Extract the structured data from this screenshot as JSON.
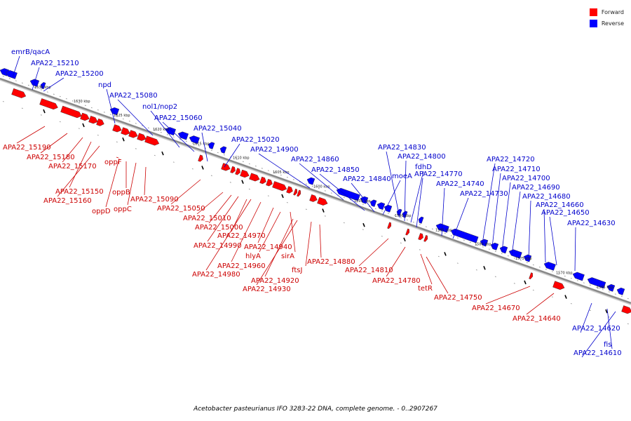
{
  "legend": {
    "forward": "Forward",
    "reverse": "Reverse"
  },
  "colors": {
    "forward": "#ff0000",
    "reverse": "#0000ff",
    "forward_label": "#cc0000",
    "reverse_label": "#0000cc",
    "backbone": "#888888"
  },
  "caption": "Acetobacter pasteurianus IFO 3283-22 DNA, complete genome. - 0..2907267",
  "scale_ticks": [
    "1635 kbp",
    "1630 kbp",
    "1625 kbp",
    "1620 kbp",
    "1615 kbp",
    "1610 kbp",
    "1605 kbp",
    "1600 kbp",
    "1595 kbp",
    "1590 kbp",
    "1585 kbp",
    "1580 kbp",
    "1575 kbp",
    "1570 kbp",
    "1565 kbp"
  ],
  "reverse_labels": [
    "emrB/qacA",
    "APA22_15210",
    "APA22_15200",
    "npd",
    "APA22_15080",
    "nol1/nop2",
    "APA22_15060",
    "APA22_15040",
    "APA22_15020",
    "APA22_14900",
    "APA22_14860",
    "APA22_14850",
    "APA22_14840",
    "moeA",
    "APA22_14830",
    "APA22_14800",
    "fdhD",
    "APA22_14770",
    "APA22_14740",
    "APA22_14730",
    "APA22_14720",
    "APA22_14710",
    "APA22_14700",
    "APA22_14690",
    "APA22_14680",
    "APA22_14660",
    "APA22_14650",
    "APA22_14630",
    "APA22_14620",
    "fis",
    "APA22_14610"
  ],
  "forward_labels": [
    "APA22_15190",
    "APA22_15180",
    "APA22_15170",
    "APA22_15150",
    "APA22_15160",
    "oppF",
    "oppB",
    "oppD",
    "oppC",
    "APA22_15090",
    "APA22_15050",
    "APA22_15010",
    "APA22_15000",
    "APA22_14970",
    "APA22_14990",
    "APA22_14940",
    "hlyA",
    "APA22_14960",
    "APA22_14980",
    "sirA",
    "APA22_14920",
    "APA22_14930",
    "ftsJ",
    "APA22_14880",
    "APA22_14810",
    "APA22_14780",
    "tetR",
    "APA22_14750",
    "APA22_14670",
    "APA22_14640"
  ]
}
